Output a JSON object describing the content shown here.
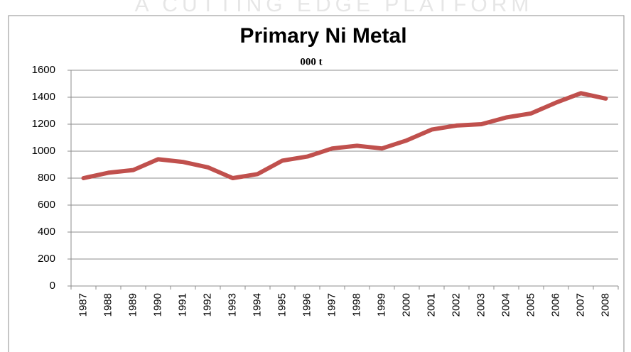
{
  "watermark": "A CUTTING EDGE PLATFORM",
  "chart_data": {
    "type": "line",
    "title": "Primary Ni Metal",
    "subtitle": "000 t",
    "categories": [
      "1987",
      "1988",
      "1989",
      "1990",
      "1991",
      "1992",
      "1993",
      "1994",
      "1995",
      "1996",
      "1997",
      "1998",
      "1999",
      "2000",
      "2001",
      "2002",
      "2003",
      "2004",
      "2005",
      "2006",
      "2007",
      "2008"
    ],
    "series": [
      {
        "name": "Primary Ni Metal",
        "color": "#c0504d",
        "values": [
          800,
          840,
          860,
          940,
          920,
          880,
          800,
          830,
          930,
          960,
          1020,
          1040,
          1020,
          1080,
          1160,
          1190,
          1200,
          1250,
          1280,
          1360,
          1430,
          1390
        ]
      }
    ],
    "ylim": [
      0,
      1600
    ],
    "yticks": [
      0,
      200,
      400,
      600,
      800,
      1000,
      1200,
      1400,
      1600
    ],
    "grid": true
  }
}
